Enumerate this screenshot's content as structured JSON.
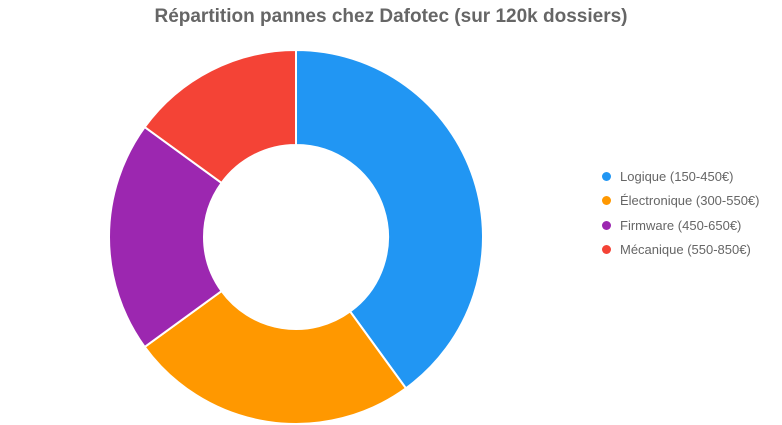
{
  "chart_data": {
    "type": "pie",
    "donut": true,
    "title": "Répartition pannes chez Dafotec (sur 120k dossiers)",
    "categories": [
      "Logique (150-450€)",
      "Électronique (300-550€)",
      "Firmware (450-650€)",
      "Mécanique (550-850€)"
    ],
    "values": [
      40,
      25,
      20,
      15
    ],
    "colors": [
      "#2196F3",
      "#FF9800",
      "#9C27B0",
      "#F44336"
    ],
    "legend_position": "right"
  }
}
